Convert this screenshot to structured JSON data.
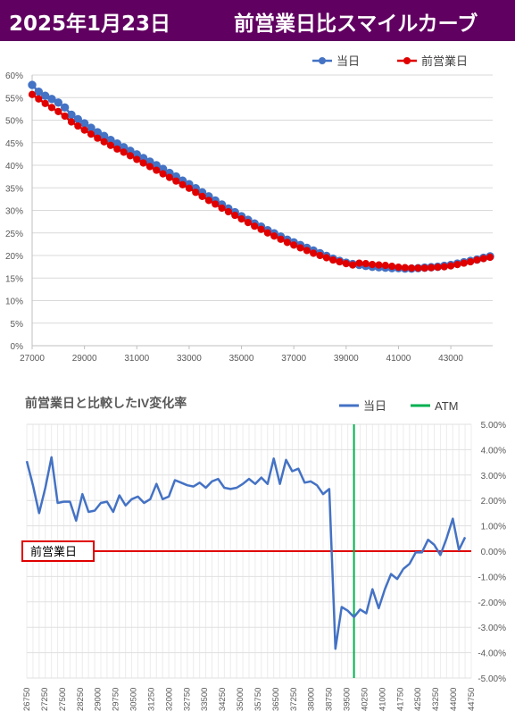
{
  "header": {
    "date": "2025年1月23日",
    "title": "前営業日比スマイルカーブ"
  },
  "colors": {
    "header_bg": "#600060",
    "current": "#4472C4",
    "previous": "#E00000",
    "atm": "#00B050",
    "zero_line": "#E00000",
    "change_line": "#4472C4"
  },
  "chart_data": [
    {
      "type": "line",
      "title": "",
      "xlabel": "",
      "ylabel": "",
      "xlim": [
        27000,
        44600
      ],
      "ylim": [
        0,
        0.6
      ],
      "x_ticks": [
        27000,
        29000,
        31000,
        33000,
        35000,
        37000,
        39000,
        41000,
        43000
      ],
      "y_ticks": [
        0,
        0.05,
        0.1,
        0.15,
        0.2,
        0.25,
        0.3,
        0.35,
        0.4,
        0.45,
        0.5,
        0.55,
        0.6
      ],
      "y_tick_labels": [
        "0%",
        "5%",
        "10%",
        "15%",
        "20%",
        "25%",
        "30%",
        "35%",
        "40%",
        "45%",
        "50%",
        "55%",
        "60%"
      ],
      "legend_position": "top-right",
      "grid": true,
      "series": [
        {
          "name": "当日",
          "color": "#4472C4",
          "points": [
            [
              27000,
              0.578
            ],
            [
              27250,
              0.563
            ],
            [
              27500,
              0.554
            ],
            [
              27750,
              0.547
            ],
            [
              28000,
              0.539
            ],
            [
              28250,
              0.528
            ],
            [
              28500,
              0.512
            ],
            [
              28750,
              0.502
            ],
            [
              29000,
              0.493
            ],
            [
              29250,
              0.483
            ],
            [
              29500,
              0.473
            ],
            [
              29750,
              0.465
            ],
            [
              30000,
              0.456
            ],
            [
              30250,
              0.448
            ],
            [
              30500,
              0.44
            ],
            [
              30750,
              0.432
            ],
            [
              31000,
              0.424
            ],
            [
              31250,
              0.416
            ],
            [
              31500,
              0.408
            ],
            [
              31750,
              0.4
            ],
            [
              32000,
              0.392
            ],
            [
              32250,
              0.383
            ],
            [
              32500,
              0.375
            ],
            [
              32750,
              0.366
            ],
            [
              33000,
              0.358
            ],
            [
              33250,
              0.349
            ],
            [
              33500,
              0.34
            ],
            [
              33750,
              0.331
            ],
            [
              34000,
              0.322
            ],
            [
              34250,
              0.313
            ],
            [
              34500,
              0.304
            ],
            [
              34750,
              0.296
            ],
            [
              35000,
              0.287
            ],
            [
              35250,
              0.279
            ],
            [
              35500,
              0.271
            ],
            [
              35750,
              0.264
            ],
            [
              36000,
              0.256
            ],
            [
              36250,
              0.249
            ],
            [
              36500,
              0.242
            ],
            [
              36750,
              0.235
            ],
            [
              37000,
              0.229
            ],
            [
              37250,
              0.223
            ],
            [
              37500,
              0.217
            ],
            [
              37750,
              0.211
            ],
            [
              38000,
              0.205
            ],
            [
              38250,
              0.199
            ],
            [
              38500,
              0.193
            ],
            [
              38750,
              0.188
            ],
            [
              39000,
              0.184
            ],
            [
              39250,
              0.181
            ],
            [
              39500,
              0.179
            ],
            [
              39750,
              0.177
            ],
            [
              40000,
              0.175
            ],
            [
              40250,
              0.174
            ],
            [
              40500,
              0.173
            ],
            [
              40750,
              0.172
            ],
            [
              41000,
              0.172
            ],
            [
              41250,
              0.171
            ],
            [
              41500,
              0.171
            ],
            [
              41750,
              0.172
            ],
            [
              42000,
              0.173
            ],
            [
              42250,
              0.174
            ],
            [
              42500,
              0.175
            ],
            [
              42750,
              0.177
            ],
            [
              43000,
              0.179
            ],
            [
              43250,
              0.182
            ],
            [
              43500,
              0.185
            ],
            [
              43750,
              0.188
            ],
            [
              44000,
              0.191
            ],
            [
              44250,
              0.195
            ],
            [
              44500,
              0.198
            ]
          ]
        },
        {
          "name": "前営業日",
          "color": "#E00000",
          "points": [
            [
              27000,
              0.557
            ],
            [
              27250,
              0.547
            ],
            [
              27500,
              0.537
            ],
            [
              27750,
              0.528
            ],
            [
              28000,
              0.519
            ],
            [
              28250,
              0.509
            ],
            [
              28500,
              0.496
            ],
            [
              28750,
              0.487
            ],
            [
              29000,
              0.478
            ],
            [
              29250,
              0.469
            ],
            [
              29500,
              0.46
            ],
            [
              29750,
              0.452
            ],
            [
              30000,
              0.444
            ],
            [
              30250,
              0.436
            ],
            [
              30500,
              0.429
            ],
            [
              30750,
              0.421
            ],
            [
              31000,
              0.413
            ],
            [
              31250,
              0.405
            ],
            [
              31500,
              0.397
            ],
            [
              31750,
              0.389
            ],
            [
              32000,
              0.381
            ],
            [
              32250,
              0.373
            ],
            [
              32500,
              0.365
            ],
            [
              32750,
              0.357
            ],
            [
              33000,
              0.349
            ],
            [
              33250,
              0.34
            ],
            [
              33500,
              0.331
            ],
            [
              33750,
              0.322
            ],
            [
              34000,
              0.314
            ],
            [
              34250,
              0.305
            ],
            [
              34500,
              0.297
            ],
            [
              34750,
              0.289
            ],
            [
              35000,
              0.281
            ],
            [
              35250,
              0.273
            ],
            [
              35500,
              0.265
            ],
            [
              35750,
              0.258
            ],
            [
              36000,
              0.25
            ],
            [
              36250,
              0.243
            ],
            [
              36500,
              0.236
            ],
            [
              36750,
              0.229
            ],
            [
              37000,
              0.223
            ],
            [
              37250,
              0.217
            ],
            [
              37500,
              0.211
            ],
            [
              37750,
              0.205
            ],
            [
              38000,
              0.2
            ],
            [
              38250,
              0.195
            ],
            [
              38500,
              0.19
            ],
            [
              38750,
              0.186
            ],
            [
              39000,
              0.182
            ],
            [
              39250,
              0.179
            ],
            [
              39500,
              0.183
            ],
            [
              39750,
              0.182
            ],
            [
              40000,
              0.18
            ],
            [
              40250,
              0.179
            ],
            [
              40500,
              0.178
            ],
            [
              40750,
              0.176
            ],
            [
              41000,
              0.174
            ],
            [
              41250,
              0.173
            ],
            [
              41500,
              0.172
            ],
            [
              41750,
              0.172
            ],
            [
              42000,
              0.172
            ],
            [
              42250,
              0.173
            ],
            [
              42500,
              0.174
            ],
            [
              42750,
              0.175
            ],
            [
              43000,
              0.177
            ],
            [
              43250,
              0.18
            ],
            [
              43500,
              0.183
            ],
            [
              43750,
              0.186
            ],
            [
              44000,
              0.19
            ],
            [
              44250,
              0.193
            ],
            [
              44500,
              0.196
            ]
          ]
        }
      ]
    },
    {
      "type": "line",
      "title": "前営業日と比較したIV変化率",
      "xlabel": "",
      "ylabel": "",
      "ylim": [
        -0.05,
        0.05
      ],
      "y_axis_side": "right",
      "y_ticks": [
        -0.05,
        -0.04,
        -0.03,
        -0.02,
        -0.01,
        0,
        0.01,
        0.02,
        0.03,
        0.04,
        0.05
      ],
      "y_tick_labels": [
        "-5.00%",
        "-4.00%",
        "-3.00%",
        "-2.00%",
        "-1.00%",
        "0.00%",
        "1.00%",
        "2.00%",
        "3.00%",
        "4.00%",
        "5.00%"
      ],
      "x_tick_labels": [
        "26750",
        "27250",
        "27500",
        "28250",
        "29000",
        "29750",
        "30500",
        "31250",
        "32000",
        "32750",
        "33500",
        "34250",
        "35000",
        "35750",
        "36500",
        "37250",
        "38000",
        "38750",
        "39500",
        "40250",
        "41000",
        "41750",
        "42500",
        "43250",
        "44000",
        "44750"
      ],
      "legend_position": "top-right",
      "grid": true,
      "atm_strike": 40000,
      "zero_label": "前営業日",
      "series": [
        {
          "name": "当日",
          "color": "#4472C4",
          "points": [
            [
              26750,
              0.0355
            ],
            [
              27000,
              0.026
            ],
            [
              27250,
              0.015
            ],
            [
              27500,
              0.025
            ],
            [
              27750,
              0.037
            ],
            [
              28000,
              0.019
            ],
            [
              28250,
              0.0195
            ],
            [
              28500,
              0.0195
            ],
            [
              28750,
              0.012
            ],
            [
              29000,
              0.0225
            ],
            [
              29250,
              0.0155
            ],
            [
              29500,
              0.016
            ],
            [
              29750,
              0.019
            ],
            [
              30000,
              0.0195
            ],
            [
              30250,
              0.0155
            ],
            [
              30500,
              0.022
            ],
            [
              30750,
              0.018
            ],
            [
              31000,
              0.0205
            ],
            [
              31250,
              0.0215
            ],
            [
              31500,
              0.019
            ],
            [
              31750,
              0.0205
            ],
            [
              32000,
              0.0265
            ],
            [
              32250,
              0.0205
            ],
            [
              32500,
              0.0215
            ],
            [
              32750,
              0.028
            ],
            [
              33000,
              0.027
            ],
            [
              33250,
              0.026
            ],
            [
              33500,
              0.0255
            ],
            [
              33750,
              0.027
            ],
            [
              34000,
              0.025
            ],
            [
              34250,
              0.0275
            ],
            [
              34500,
              0.0285
            ],
            [
              34750,
              0.025
            ],
            [
              35000,
              0.0245
            ],
            [
              35250,
              0.025
            ],
            [
              35500,
              0.0265
            ],
            [
              35750,
              0.0285
            ],
            [
              36000,
              0.0265
            ],
            [
              36250,
              0.029
            ],
            [
              36500,
              0.0265
            ],
            [
              36750,
              0.0365
            ],
            [
              37000,
              0.0265
            ],
            [
              37250,
              0.036
            ],
            [
              37500,
              0.0315
            ],
            [
              37750,
              0.0325
            ],
            [
              38000,
              0.027
            ],
            [
              38250,
              0.0275
            ],
            [
              38500,
              0.026
            ],
            [
              38750,
              0.0225
            ],
            [
              39000,
              0.0245
            ],
            [
              39250,
              -0.0385
            ],
            [
              39500,
              -0.022
            ],
            [
              39750,
              -0.0235
            ],
            [
              40000,
              -0.026
            ],
            [
              40250,
              -0.023
            ],
            [
              40500,
              -0.0245
            ],
            [
              40750,
              -0.015
            ],
            [
              41000,
              -0.0225
            ],
            [
              41250,
              -0.015
            ],
            [
              41500,
              -0.009
            ],
            [
              41750,
              -0.011
            ],
            [
              42000,
              -0.007
            ],
            [
              42250,
              -0.005
            ],
            [
              42500,
              -0.0005
            ],
            [
              42750,
              -0.0005
            ],
            [
              43000,
              0.0045
            ],
            [
              43250,
              0.0025
            ],
            [
              43500,
              -0.0015
            ],
            [
              43750,
              0.005
            ],
            [
              44000,
              0.0128
            ],
            [
              44250,
              0.0005
            ],
            [
              44500,
              0.0055
            ]
          ]
        },
        {
          "name": "ATM",
          "color": "#00B050",
          "points": []
        }
      ]
    }
  ]
}
